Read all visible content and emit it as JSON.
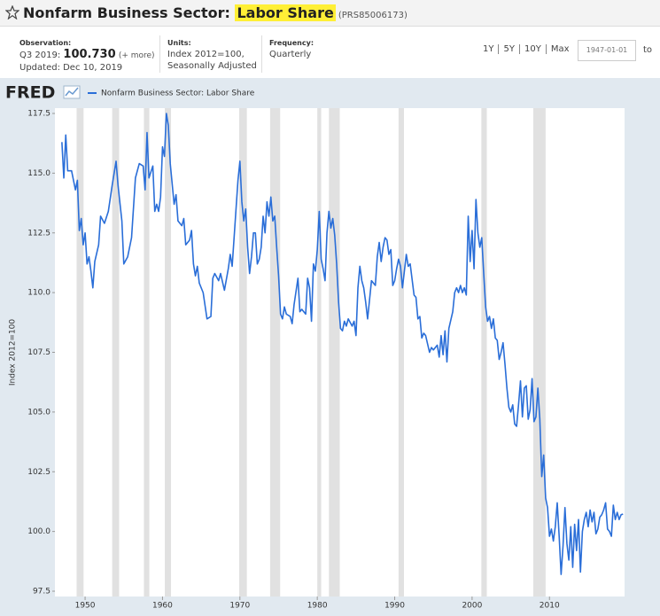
{
  "header": {
    "title": "Nonfarm Business Sector:",
    "title_highlight": "Labor Share",
    "series_id": "(PRS85006173)"
  },
  "meta": {
    "observation_label": "Observation:",
    "period": "Q3 2019:",
    "value": "100.730",
    "more": "(+ more)",
    "updated": "Updated: Dec 10, 2019",
    "units_label": "Units:",
    "units_line1": "Index 2012=100,",
    "units_line2": "Seasonally Adjusted",
    "frequency_label": "Frequency:",
    "frequency": "Quarterly"
  },
  "controls": {
    "ranges": [
      "1Y",
      "5Y",
      "10Y",
      "Max"
    ],
    "start_date": "1947-01-01",
    "to": "to"
  },
  "logo": "FRED",
  "chart_data": {
    "type": "line",
    "ylabel": "Index 2012=100",
    "xlim": [
      1946.1,
      2019.7
    ],
    "xticks": [
      1950,
      1960,
      1970,
      1980,
      1990,
      2000,
      2010
    ],
    "ylim": [
      97.5,
      117.5
    ],
    "yticks": [
      97.5,
      {
        "value": 100,
        "label": "100.0"
      },
      102.5,
      {
        "value": 105,
        "label": "105.0"
      },
      107.5,
      {
        "value": 110,
        "label": "110.0"
      },
      112.5,
      {
        "value": 115,
        "label": "115.0"
      },
      117.5
    ],
    "grid": false,
    "recessions": [
      [
        1948.9,
        1949.8
      ],
      [
        1953.5,
        1954.4
      ],
      [
        1957.6,
        1958.3
      ],
      [
        1960.3,
        1961.1
      ],
      [
        1969.9,
        1970.9
      ],
      [
        1973.9,
        1975.2
      ],
      [
        1980.0,
        1980.5
      ],
      [
        1981.5,
        1982.9
      ],
      [
        1990.5,
        1991.2
      ],
      [
        2001.2,
        2001.9
      ],
      [
        2007.9,
        2009.5
      ]
    ],
    "recession_color": "#e1e1e1",
    "x": [
      1947,
      1947.25,
      1947.5,
      1947.75,
      1948.25,
      1948.75,
      1949,
      1949.25,
      1949.5,
      1949.75,
      1950,
      1950.25,
      1950.5,
      1950.75,
      1951,
      1951.25,
      1951.75,
      1952,
      1952.5,
      1953,
      1953.5,
      1954,
      1954.25,
      1954.75,
      1955,
      1955.5,
      1956,
      1956.5,
      1957,
      1957.5,
      1957.75,
      1958,
      1958.25,
      1958.75,
      1959,
      1959.25,
      1959.5,
      1959.75,
      1960,
      1960.25,
      1960.5,
      1960.75,
      1961,
      1961.5,
      1961.75,
      1962,
      1962.5,
      1962.75,
      1963,
      1963.5,
      1963.75,
      1964,
      1964.25,
      1964.5,
      1964.75,
      1965.25,
      1965.75,
      1966.25,
      1966.5,
      1966.75,
      1967.25,
      1967.5,
      1968,
      1968.5,
      1968.75,
      1969,
      1969.5,
      1969.75,
      1970,
      1970.25,
      1970.5,
      1970.75,
      1971,
      1971.25,
      1971.5,
      1971.75,
      1972,
      1972.25,
      1972.5,
      1972.75,
      1973,
      1973.25,
      1973.5,
      1973.75,
      1974,
      1974.25,
      1974.5,
      1974.75,
      1975,
      1975.25,
      1975.5,
      1975.75,
      1976,
      1976.5,
      1976.75,
      1977,
      1977.5,
      1977.75,
      1978,
      1978.5,
      1978.75,
      1979,
      1979.25,
      1979.5,
      1979.75,
      1980,
      1980.25,
      1980.5,
      1980.75,
      1981,
      1981.25,
      1981.5,
      1981.75,
      1982,
      1982.25,
      1982.5,
      1982.75,
      1983,
      1983.25,
      1983.5,
      1983.75,
      1984,
      1984.5,
      1984.75,
      1985,
      1985.25,
      1985.5,
      1985.75,
      1986,
      1986.25,
      1986.5,
      1987,
      1987.5,
      1987.75,
      1988,
      1988.25,
      1988.5,
      1988.75,
      1989,
      1989.25,
      1989.5,
      1989.75,
      1990,
      1990.25,
      1990.5,
      1990.75,
      1991,
      1991.25,
      1991.5,
      1991.75,
      1992,
      1992.5,
      1992.75,
      1993,
      1993.25,
      1993.5,
      1993.75,
      1994,
      1994.5,
      1994.75,
      1995,
      1995.5,
      1995.75,
      1996,
      1996.25,
      1996.5,
      1996.75,
      1997,
      1997.5,
      1997.75,
      1998,
      1998.25,
      1998.5,
      1998.75,
      1999,
      1999.25,
      1999.5,
      1999.75,
      2000,
      2000.25,
      2000.5,
      2000.75,
      2001,
      2001.25,
      2001.5,
      2001.75,
      2002,
      2002.25,
      2002.5,
      2002.75,
      2003,
      2003.25,
      2003.5,
      2003.75,
      2004,
      2004.25,
      2004.5,
      2004.75,
      2005,
      2005.25,
      2005.5,
      2005.75,
      2006,
      2006.25,
      2006.5,
      2006.75,
      2007,
      2007.25,
      2007.5,
      2007.75,
      2008,
      2008.25,
      2008.5,
      2008.75,
      2009,
      2009.25,
      2009.5,
      2009.75,
      2010,
      2010.25,
      2010.5,
      2010.75,
      2011,
      2011.25,
      2011.5,
      2011.75,
      2012,
      2012.25,
      2012.5,
      2012.75,
      2013,
      2013.25,
      2013.5,
      2013.75,
      2014,
      2014.25,
      2014.5,
      2014.75,
      2015,
      2015.25,
      2015.5,
      2015.75,
      2016,
      2016.25,
      2016.5,
      2016.75,
      2017,
      2017.25,
      2017.5,
      2017.75,
      2018,
      2018.25,
      2018.5,
      2018.75,
      2019,
      2019.25,
      2019.5
    ],
    "series": [
      {
        "name": "Nonfarm Business Sector: Labor Share",
        "color": "#2a6ed8",
        "values": [
          116.3,
          114.8,
          116.6,
          115.1,
          115.1,
          114.3,
          114.7,
          112.6,
          113.1,
          112,
          112.5,
          111.2,
          111.5,
          110.9,
          110.2,
          111.3,
          112,
          113.2,
          112.9,
          113.4,
          114.5,
          115.5,
          114.5,
          113,
          111.2,
          111.5,
          112.3,
          114.8,
          115.4,
          115.3,
          114.3,
          116.7,
          114.8,
          115.3,
          113.4,
          113.7,
          113.4,
          114,
          116.1,
          115.7,
          117.5,
          117,
          115.4,
          113.7,
          114.1,
          113,
          112.8,
          113.1,
          112,
          112.2,
          112.6,
          111.2,
          110.7,
          111.1,
          110.4,
          110,
          108.9,
          109,
          110.6,
          110.8,
          110.5,
          110.8,
          110.1,
          111,
          111.6,
          111.1,
          113.5,
          114.7,
          115.5,
          113.8,
          113,
          113.5,
          111.9,
          110.8,
          111.5,
          112.5,
          112.5,
          111.2,
          111.4,
          111.9,
          113.2,
          112.5,
          113.8,
          113.2,
          114,
          113,
          113.2,
          111.9,
          110.7,
          109.1,
          108.9,
          109.4,
          109.1,
          109,
          108.7,
          109.5,
          110.6,
          109.2,
          109.3,
          109.1,
          110.6,
          110.2,
          108.8,
          111.2,
          110.9,
          111.8,
          113.4,
          111.4,
          111,
          110.5,
          112.5,
          113.4,
          112.7,
          113.1,
          112.4,
          111.2,
          109.6,
          108.5,
          108.4,
          108.8,
          108.6,
          108.9,
          108.6,
          108.8,
          108.2,
          110.2,
          111.1,
          110.5,
          110.2,
          109.6,
          108.9,
          110.5,
          110.3,
          111.5,
          112.1,
          111.3,
          111.9,
          112.3,
          112.2,
          111.6,
          111.8,
          110.3,
          110.5,
          111,
          111.4,
          111.1,
          110.2,
          110.9,
          111.6,
          111.1,
          111.2,
          109.9,
          109.8,
          108.9,
          109,
          108.1,
          108.3,
          108.2,
          107.5,
          107.7,
          107.6,
          107.8,
          107.3,
          108.2,
          107.4,
          108.4,
          107.1,
          108.5,
          109.2,
          110,
          110.2,
          110,
          110.3,
          110,
          110.2,
          109.9,
          113.2,
          111.3,
          112.6,
          111,
          113.9,
          112.5,
          111.9,
          112.3,
          110.8,
          109.4,
          108.8,
          109,
          108.5,
          108.9,
          108.1,
          108,
          107.2,
          107.5,
          107.9,
          107,
          106,
          105.2,
          105,
          105.3,
          104.5,
          104.4,
          105.3,
          106.3,
          104.8,
          106,
          106.1,
          104.7,
          105.1,
          106.4,
          104.6,
          104.8,
          106,
          104.7,
          102.3,
          103.2,
          101.4,
          101,
          99.8,
          100.1,
          99.6,
          100.2,
          101.2,
          99.8,
          98.2,
          99.4,
          101,
          99.5,
          98.8,
          100.2,
          98.5,
          100.3,
          99.2,
          100.5,
          98.3,
          100,
          100.5,
          100.8,
          100.2,
          100.9,
          100.4,
          100.8,
          99.9,
          100.1,
          100.6,
          100.7,
          100.9,
          101.2,
          100.1,
          100,
          99.8,
          101.1,
          100.5,
          100.8,
          100.5,
          100.7,
          100.73
        ]
      }
    ]
  }
}
